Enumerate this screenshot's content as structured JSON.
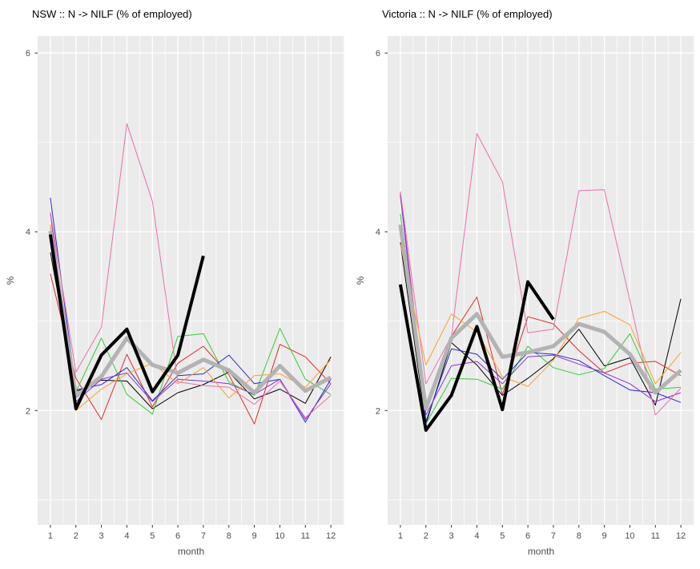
{
  "figure": {
    "background": "#ffffff",
    "panel_background": "#ebebeb",
    "grid_color": "#ffffff",
    "tick_text_color": "#4d4d4d",
    "title_color": "#000000"
  },
  "chart_data": [
    {
      "type": "line",
      "title": "NSW :: N -> NILF (% of employed)",
      "xlabel": "month",
      "ylabel": "%",
      "x": [
        1,
        2,
        3,
        4,
        5,
        6,
        7,
        8,
        9,
        10,
        11,
        12
      ],
      "x_tick_labels": [
        "1",
        "2",
        "3",
        "4",
        "5",
        "6",
        "7",
        "8",
        "9",
        "10",
        "11",
        "12"
      ],
      "y_major_ticks": [
        2,
        4,
        6
      ],
      "y_tick_labels": [
        "2",
        "4",
        "6"
      ],
      "y_minor_ticks": [
        1,
        3,
        5
      ],
      "xlim": [
        0.5,
        12.53
      ],
      "ylim": [
        0.72,
        6.19
      ],
      "grid": true,
      "legend_position": "none",
      "series": [
        {
          "name": "year-black",
          "color": "#000000",
          "width": 1,
          "values": [
            3.77,
            2.21,
            2.34,
            2.33,
            2.02,
            2.2,
            2.29,
            2.43,
            2.13,
            2.24,
            2.08,
            2.6
          ]
        },
        {
          "name": "year-red",
          "color": "#dd2c2c",
          "width": 1,
          "values": [
            3.53,
            2.36,
            1.9,
            2.63,
            2.04,
            2.53,
            2.72,
            2.4,
            1.85,
            2.74,
            2.6,
            2.3
          ]
        },
        {
          "name": "year-green",
          "color": "#33cc33",
          "width": 1,
          "values": [
            4.05,
            2.21,
            2.81,
            2.18,
            1.96,
            2.83,
            2.86,
            2.32,
            2.17,
            2.92,
            2.35,
            2.18
          ]
        },
        {
          "name": "year-blue",
          "color": "#2929cc",
          "width": 1,
          "values": [
            4.38,
            2.23,
            2.29,
            2.48,
            2.11,
            2.39,
            2.41,
            2.62,
            2.3,
            2.35,
            1.87,
            2.35
          ]
        },
        {
          "name": "year-purple",
          "color": "#8833cc",
          "width": 1,
          "values": [
            4.2,
            2.1,
            2.35,
            2.42,
            2.1,
            2.35,
            2.33,
            2.3,
            2.18,
            2.35,
            1.9,
            2.3
          ]
        },
        {
          "name": "year-magenta",
          "color": "#e670ad",
          "width": 1,
          "values": [
            4.22,
            2.43,
            2.93,
            5.21,
            4.34,
            2.32,
            2.28,
            2.26,
            2.07,
            2.33,
            1.92,
            2.17
          ]
        },
        {
          "name": "year-orange",
          "color": "#ff9e2c",
          "width": 1,
          "values": [
            4.08,
            2.0,
            2.24,
            2.41,
            2.53,
            2.3,
            2.48,
            2.14,
            2.39,
            2.41,
            2.26,
            2.57
          ]
        },
        {
          "name": "mean-line",
          "color": "#b3b3b3",
          "width": 5,
          "values": [
            4.01,
            2.16,
            2.38,
            2.81,
            2.51,
            2.42,
            2.57,
            2.45,
            2.2,
            2.5,
            2.22,
            2.37
          ]
        },
        {
          "name": "current-year",
          "color": "#000000",
          "width": 4,
          "values": [
            3.97,
            2.02,
            2.62,
            2.91,
            2.21,
            2.62,
            3.73,
            null,
            null,
            null,
            null,
            null
          ]
        }
      ]
    },
    {
      "type": "line",
      "title": "Victoria :: N -> NILF (% of employed)",
      "xlabel": "month",
      "ylabel": "%",
      "x": [
        1,
        2,
        3,
        4,
        5,
        6,
        7,
        8,
        9,
        10,
        11,
        12
      ],
      "x_tick_labels": [
        "1",
        "2",
        "3",
        "4",
        "5",
        "6",
        "7",
        "8",
        "9",
        "10",
        "11",
        "12"
      ],
      "y_major_ticks": [
        2,
        4,
        6
      ],
      "y_tick_labels": [
        "2",
        "4",
        "6"
      ],
      "y_minor_ticks": [
        1,
        3,
        5
      ],
      "xlim": [
        0.5,
        12.53
      ],
      "ylim": [
        0.72,
        6.19
      ],
      "grid": true,
      "legend_position": "none",
      "series": [
        {
          "name": "year-black",
          "color": "#000000",
          "width": 1,
          "values": [
            3.88,
            1.85,
            2.76,
            2.51,
            2.17,
            2.36,
            2.58,
            2.91,
            2.5,
            2.59,
            2.06,
            3.25
          ]
        },
        {
          "name": "year-red",
          "color": "#dd2c2c",
          "width": 1,
          "values": [
            4.42,
            2.0,
            2.83,
            3.27,
            2.18,
            3.05,
            2.97,
            2.67,
            2.42,
            2.53,
            2.55,
            2.39
          ]
        },
        {
          "name": "year-green",
          "color": "#33cc33",
          "width": 1,
          "values": [
            4.2,
            1.85,
            2.36,
            2.35,
            2.24,
            2.72,
            2.48,
            2.4,
            2.47,
            2.86,
            2.24,
            2.26
          ]
        },
        {
          "name": "year-blue",
          "color": "#2929cc",
          "width": 1,
          "values": [
            4.43,
            1.88,
            2.69,
            2.63,
            2.35,
            2.65,
            2.63,
            2.56,
            2.39,
            2.23,
            2.2,
            2.09
          ]
        },
        {
          "name": "year-purple",
          "color": "#8833cc",
          "width": 1,
          "values": [
            4.4,
            1.95,
            2.5,
            2.55,
            2.3,
            2.6,
            2.62,
            2.52,
            2.42,
            2.3,
            2.1,
            2.2
          ]
        },
        {
          "name": "year-magenta",
          "color": "#e670ad",
          "width": 1,
          "values": [
            4.45,
            2.3,
            2.83,
            5.1,
            4.56,
            2.87,
            2.91,
            4.46,
            4.47,
            3.23,
            1.95,
            2.25
          ]
        },
        {
          "name": "year-orange",
          "color": "#ff9e2c",
          "width": 1,
          "values": [
            3.86,
            2.51,
            3.08,
            2.88,
            2.38,
            2.27,
            2.56,
            3.03,
            3.11,
            2.96,
            2.3,
            2.65
          ]
        },
        {
          "name": "mean-line",
          "color": "#b3b3b3",
          "width": 5,
          "values": [
            4.08,
            2.02,
            2.81,
            3.08,
            2.6,
            2.65,
            2.72,
            2.97,
            2.88,
            2.63,
            2.2,
            2.45
          ]
        },
        {
          "name": "current-year",
          "color": "#000000",
          "width": 4,
          "values": [
            3.41,
            1.78,
            2.17,
            2.94,
            2.01,
            3.44,
            3.02,
            null,
            null,
            null,
            null,
            null
          ]
        }
      ]
    }
  ]
}
